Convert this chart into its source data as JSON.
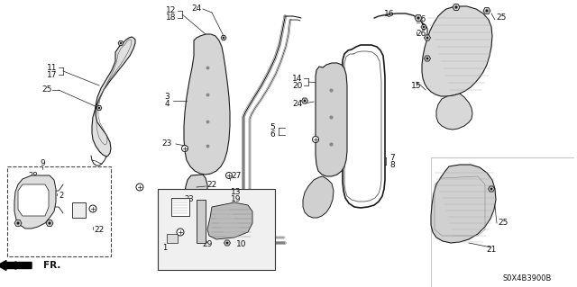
{
  "background_color": "#ffffff",
  "diagram_code": "S0X4B3900B",
  "figsize": [
    6.4,
    3.19
  ],
  "dpi": 100,
  "line_color": "#1a1a1a",
  "label_color": "#111111",
  "gray_fill": "#d8d8d8",
  "gray_fill2": "#c8c8c8",
  "white_fill": "#ffffff",
  "hatch_color": "#999999"
}
